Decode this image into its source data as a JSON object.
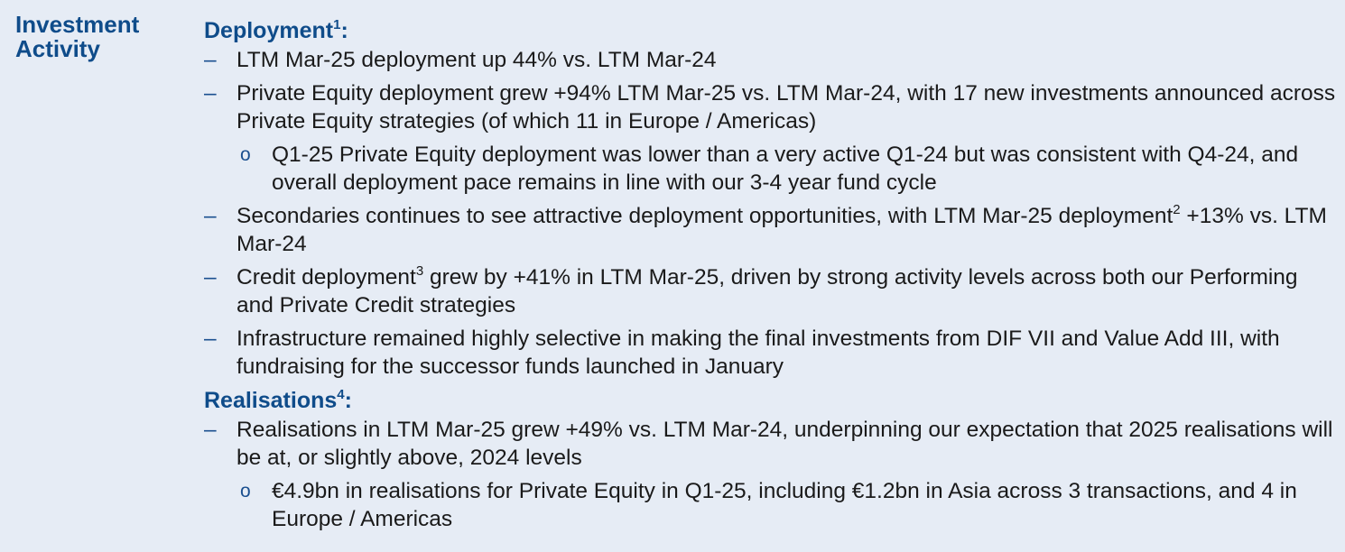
{
  "side_title": "Investment\nActivity",
  "deployment": {
    "heading": "Deployment",
    "heading_sup": "1",
    "colon": ":",
    "items": [
      {
        "text_a": "LTM Mar-25 deployment up 44% vs. LTM Mar-24"
      },
      {
        "text_a": "Private Equity deployment grew +94% LTM Mar-25 vs. LTM Mar-24, with 17 new investments announced across Private Equity strategies (of which 11 in Europe / Americas)"
      },
      {
        "text_a": "Q1-25 Private Equity deployment was lower than a very active Q1-24 but was consistent with Q4-24, and overall deployment pace remains in line with our 3-4 year fund cycle"
      },
      {
        "text_a": "Secondaries continues to see attractive deployment opportunities, with LTM Mar-25 deployment",
        "sup": "2",
        "text_b": " +13% vs. LTM Mar-24"
      },
      {
        "text_a": "Credit deployment",
        "sup": "3",
        "text_b": " grew by +41% in LTM Mar-25, driven by strong activity levels across both our Performing and Private Credit strategies"
      },
      {
        "text_a": "Infrastructure remained highly selective in making the final investments from DIF VII and Value Add III, with fundraising for the successor funds launched in January"
      }
    ]
  },
  "realisations": {
    "heading": "Realisations",
    "heading_sup": "4",
    "colon": ":",
    "items": [
      {
        "text_a": "Realisations in LTM Mar-25 grew +49% vs. LTM Mar-24, underpinning our expectation that 2025 realisations will be at, or slightly above, 2024 levels"
      },
      {
        "text_a": "€4.9bn in realisations for Private Equity in Q1-25, including €1.2bn in Asia across 3 transactions, and 4 in Europe / Americas"
      }
    ]
  },
  "markers": {
    "dash": "–",
    "circle": "o"
  }
}
